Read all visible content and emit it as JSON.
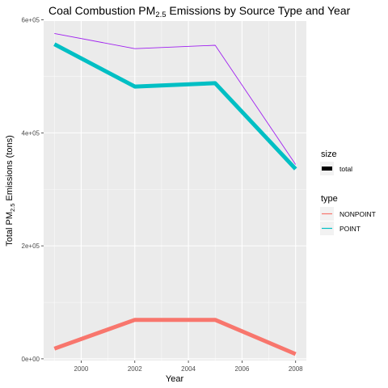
{
  "chart_data": {
    "type": "line",
    "title": {
      "prefix": "Coal Combustion PM",
      "subscript": "2.5",
      "suffix": " Emissions by Source Type and Year"
    },
    "xlabel": "Year",
    "ylabel": {
      "prefix": "Total PM",
      "subscript": "2.5",
      "suffix": " Emissions (tons)"
    },
    "xlim": [
      1998.6,
      2008.4
    ],
    "ylim": [
      -3000,
      598000
    ],
    "x_ticks": [
      2000,
      2002,
      2004,
      2006,
      2008
    ],
    "x_tick_labels": [
      "2000",
      "2002",
      "2004",
      "2006",
      "2008"
    ],
    "y_ticks": [
      0,
      200000,
      400000,
      600000
    ],
    "y_tick_labels": [
      "0e+00",
      "2e+05",
      "4e+05",
      "6e+05"
    ],
    "grid": true,
    "x": [
      1999,
      2002,
      2005,
      2008
    ],
    "series": [
      {
        "name": "NONPOINT",
        "values": [
          18000,
          69000,
          69000,
          8500
        ],
        "color": "#F8766D",
        "size": "thick"
      },
      {
        "name": "POINT",
        "values": [
          557000,
          482000,
          488000,
          336000
        ],
        "color": "#00BFC4",
        "size": "thick"
      },
      {
        "values": [
          576000,
          549000,
          555000,
          344000
        ],
        "color": "#A020F0",
        "size": "thin"
      }
    ],
    "legend": {
      "placement": "right",
      "size": {
        "title": "size",
        "entries": [
          "total"
        ]
      },
      "type": {
        "title": "type",
        "entries": [
          "NONPOINT",
          "POINT"
        ]
      }
    }
  }
}
